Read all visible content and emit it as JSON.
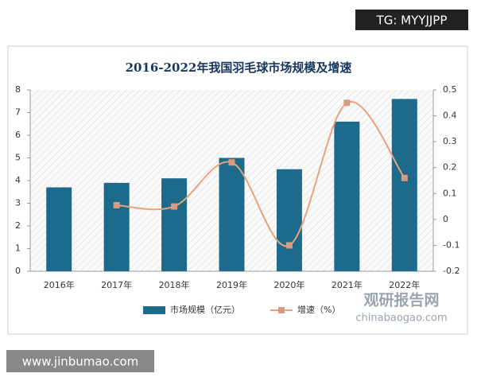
{
  "chart_data": {
    "type": "bar_line",
    "title": "2016-2022年我国羽毛球市场规模及增速",
    "categories": [
      "2016年",
      "2017年",
      "2018年",
      "2019年",
      "2020年",
      "2021年",
      "2022年"
    ],
    "series": [
      {
        "name": "市场规模（亿元）",
        "color": "#1d6b8c",
        "type": "bar",
        "values": [
          3.7,
          3.9,
          4.1,
          5.0,
          4.5,
          6.6,
          7.6
        ]
      },
      {
        "name": "增速（%）",
        "color": "#e9a27a",
        "type": "line",
        "axis": "y2",
        "values": [
          null,
          0.055,
          0.05,
          0.22,
          -0.1,
          0.45,
          0.16
        ]
      }
    ],
    "ylim": [
      0,
      8
    ],
    "yticks": [
      0,
      1,
      2,
      3,
      4,
      5,
      6,
      7,
      8
    ],
    "y2lim": [
      -0.2,
      0.5
    ],
    "y2ticks": [
      -0.2,
      -0.1,
      0,
      0.1,
      0.2,
      0.3,
      0.4,
      0.5
    ],
    "legend": "bottom"
  },
  "watermarks": {
    "top": "TG: MYYJJPP",
    "bottom": "www.jinbumao.com",
    "logo": "观研报告网",
    "logo_url": "chinabaogao.com"
  }
}
